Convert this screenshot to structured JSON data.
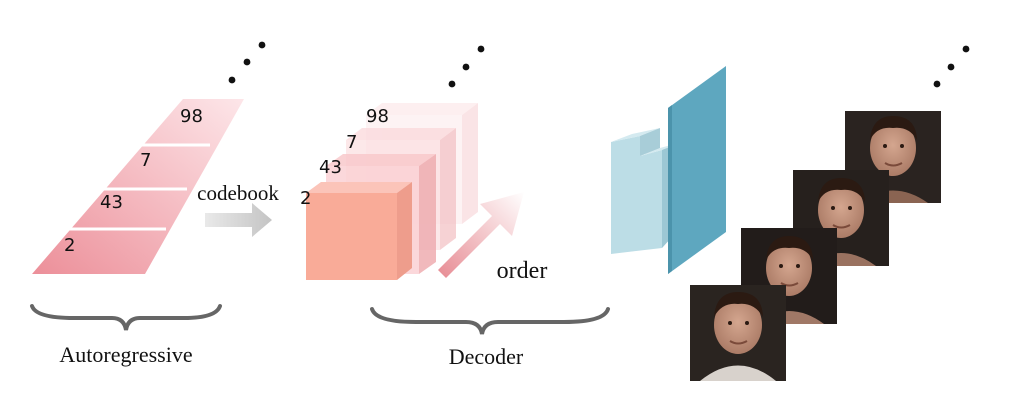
{
  "autoregressive": {
    "tokens": [
      "98",
      "7",
      "43",
      "2"
    ],
    "label": "Autoregressive"
  },
  "codebook_label": "codebook",
  "decoder": {
    "tokens": [
      "98",
      "7",
      "43",
      "2"
    ],
    "order_label": "order",
    "label": "Decoder"
  },
  "faces": {
    "count": 4
  },
  "colors": {
    "strip_dark": "#ec8f99",
    "strip_light": "#fbe3e6",
    "cube_front": "#f9ab98",
    "arrow_gray": "#cfcfcf",
    "generator_light": "#bcdde6",
    "generator_dark": "#5ea7bf",
    "photo_bg": "#2a2320",
    "skin": "#c79c86"
  }
}
